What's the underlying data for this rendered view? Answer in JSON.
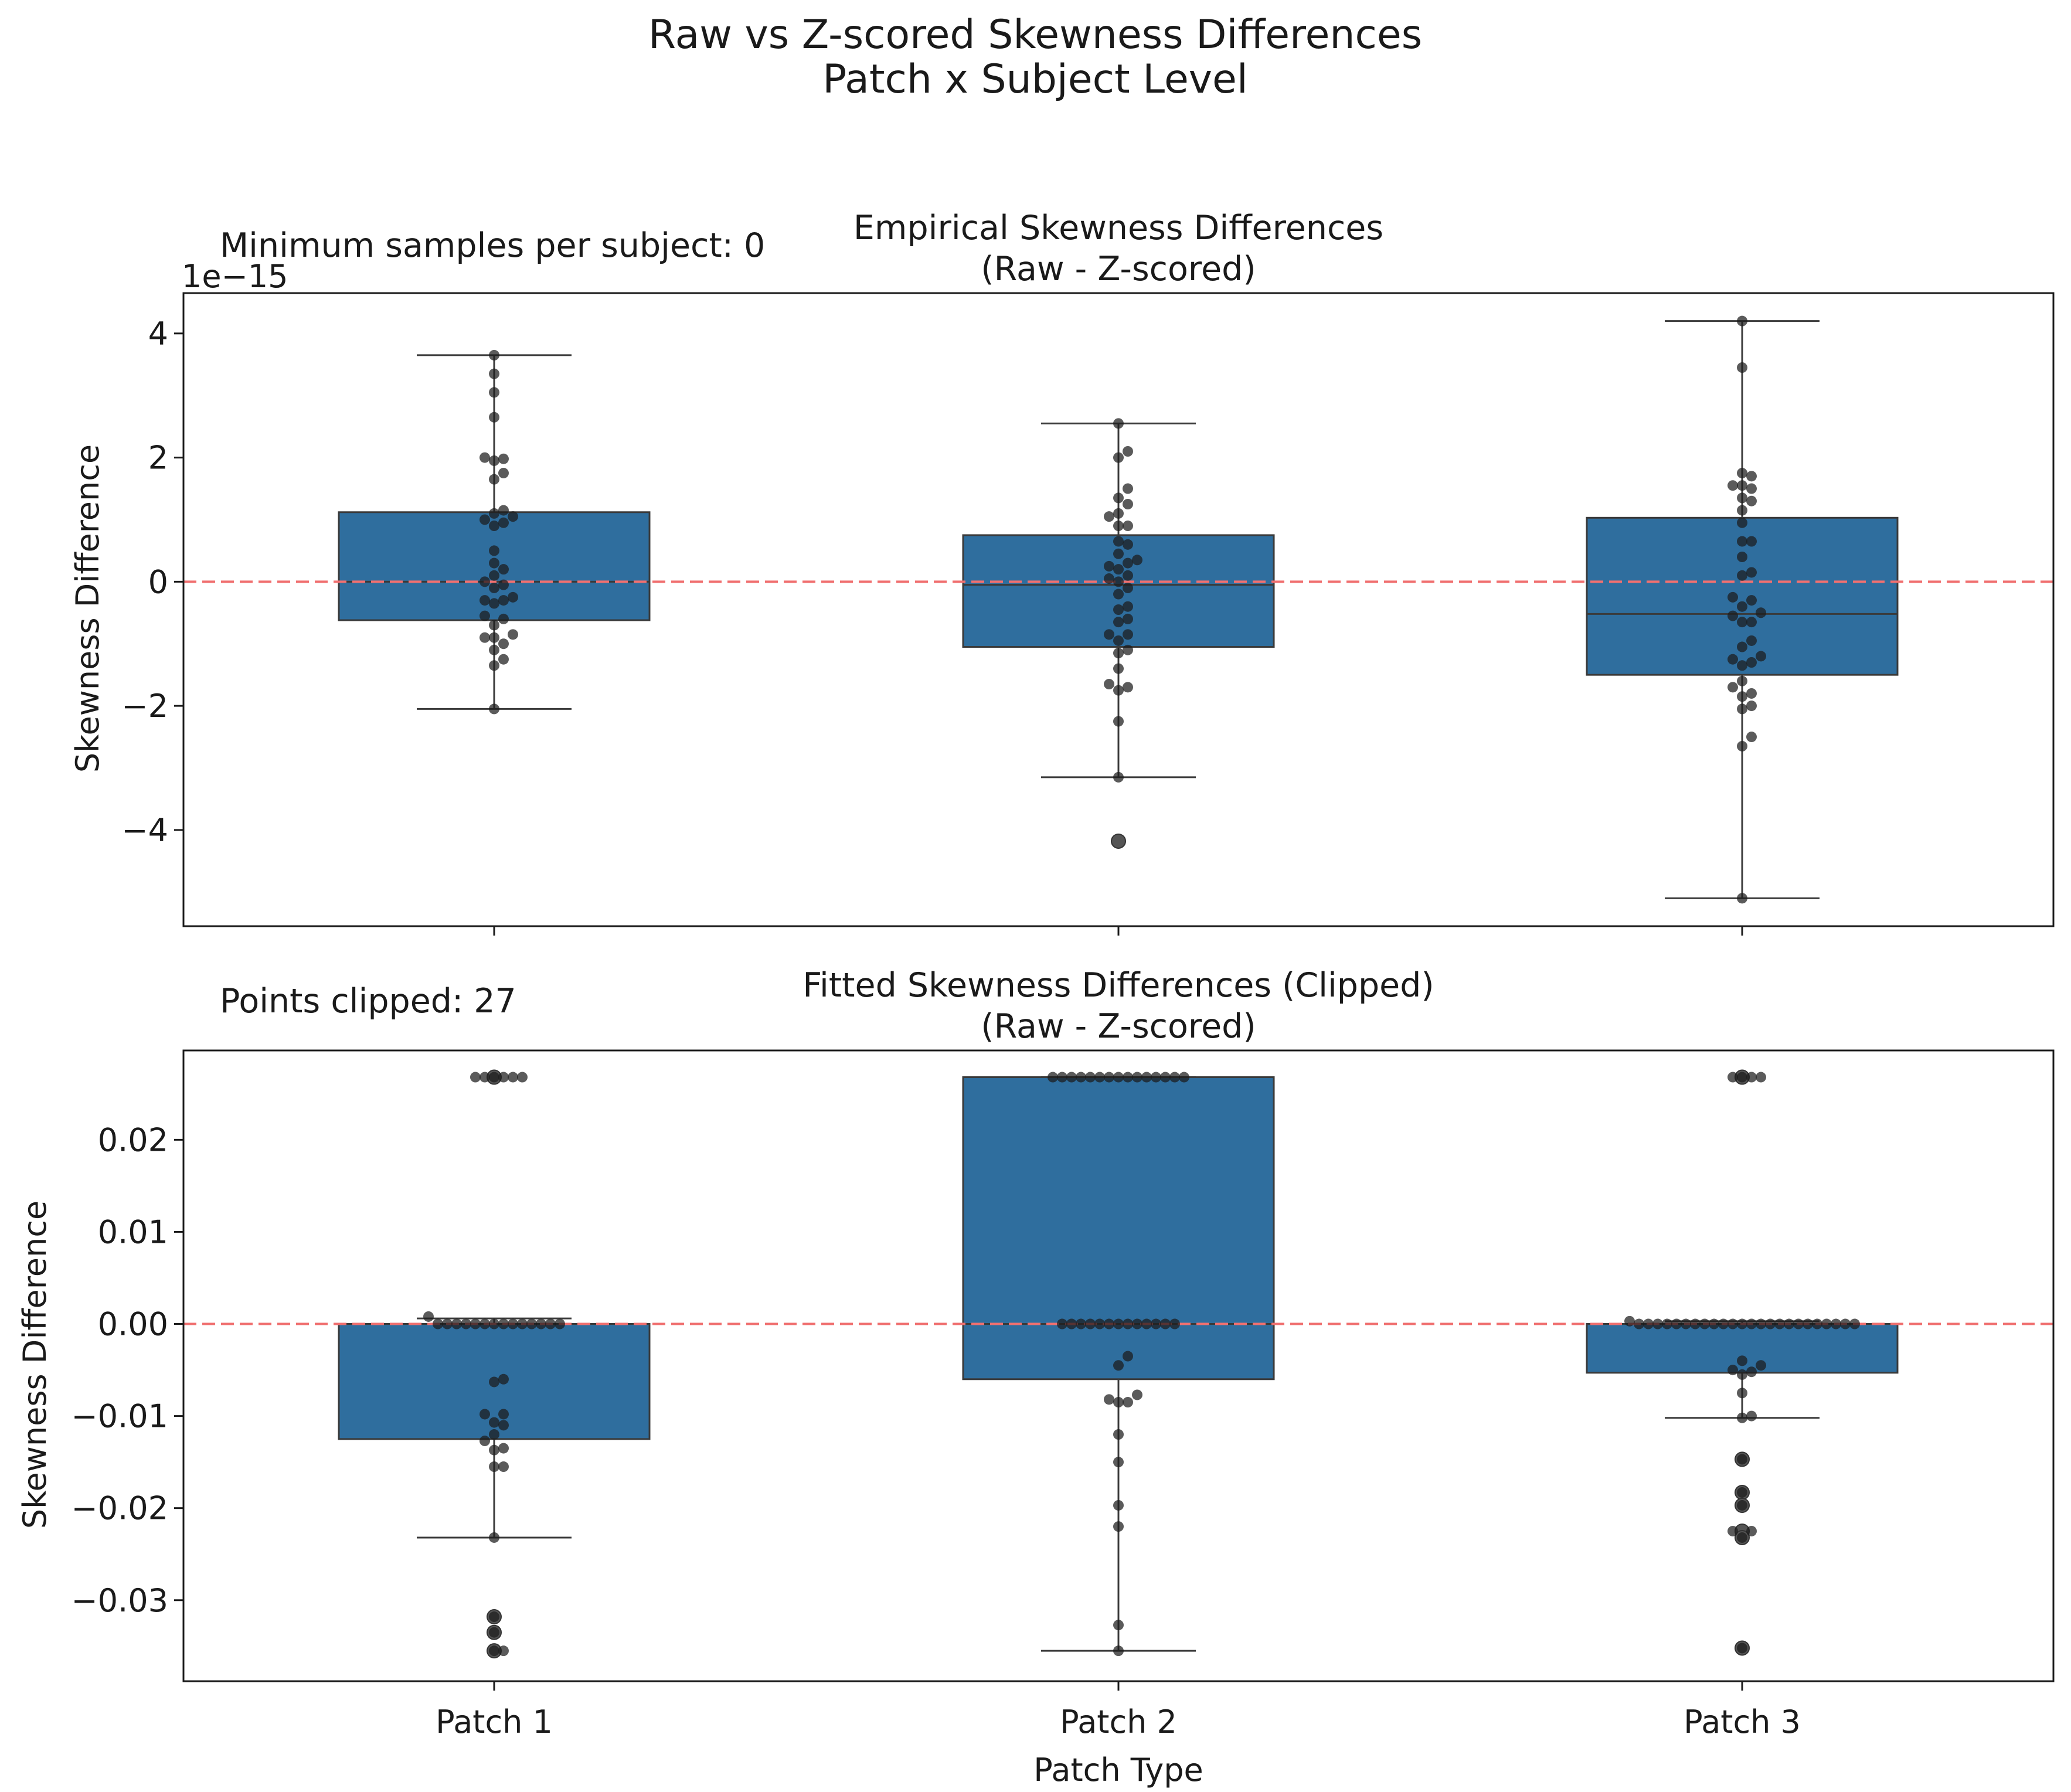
{
  "suptitle": [
    "Raw vs Z-scored Skewness Differences",
    "Patch x Subject Level"
  ],
  "xlabel": "Patch Type",
  "categories": [
    "Patch 1",
    "Patch 2",
    "Patch 3"
  ],
  "colors": {
    "box": "#2f6e9e",
    "box_edge": "#3a3a3a",
    "point": "#1c1c1c",
    "zero_line": "#f07070"
  },
  "chart_data": [
    {
      "type": "box",
      "title": [
        "Empirical Skewness Differences",
        "(Raw - Z-scored)"
      ],
      "annotation": "Minimum samples per subject: 0",
      "offset_label": "1e−15",
      "ylabel": "Skewness Difference",
      "ylim": [
        -5.55,
        4.65
      ],
      "yticks": [
        -4,
        -2,
        0,
        2,
        4
      ],
      "ytick_labels": [
        "−4",
        "−2",
        "0",
        "2",
        "4"
      ],
      "reference_line": 0,
      "boxes": [
        {
          "category": "Patch 1",
          "q1": -0.62,
          "median": 0.0,
          "q3": 1.12,
          "whisker_low": -2.05,
          "whisker_high": 3.65,
          "outliers": []
        },
        {
          "category": "Patch 2",
          "q1": -1.05,
          "median": -0.05,
          "q3": 0.75,
          "whisker_low": -3.15,
          "whisker_high": 2.55,
          "outliers": [
            -4.18
          ]
        },
        {
          "category": "Patch 3",
          "q1": -1.5,
          "median": -0.52,
          "q3": 1.03,
          "whisker_low": -5.1,
          "whisker_high": 4.2,
          "outliers": []
        }
      ],
      "points": [
        [
          3.65,
          3.35,
          3.05,
          2.65,
          2.0,
          1.95,
          1.98,
          1.75,
          1.65,
          1.15,
          1.1,
          1.05,
          1.0,
          0.95,
          0.9,
          0.5,
          0.3,
          0.2,
          0.1,
          0.0,
          -0.05,
          -0.1,
          -0.25,
          -0.3,
          -0.3,
          -0.35,
          -0.55,
          -0.6,
          -0.7,
          -0.85,
          -0.9,
          -0.9,
          -1.0,
          -1.1,
          -1.25,
          -1.35,
          -2.05
        ],
        [
          2.55,
          2.1,
          2.0,
          1.5,
          1.35,
          1.25,
          1.1,
          1.05,
          0.9,
          0.9,
          0.65,
          0.6,
          0.45,
          0.35,
          0.3,
          0.25,
          0.2,
          0.1,
          0.05,
          0.0,
          -0.1,
          -0.2,
          -0.4,
          -0.45,
          -0.6,
          -0.65,
          -0.85,
          -0.85,
          -0.95,
          -1.1,
          -1.15,
          -1.4,
          -1.65,
          -1.7,
          -1.75,
          -2.25,
          -3.15
        ],
        [
          4.2,
          3.45,
          1.75,
          1.7,
          1.55,
          1.55,
          1.5,
          1.35,
          1.3,
          1.15,
          0.95,
          0.65,
          0.65,
          0.4,
          0.15,
          0.1,
          -0.25,
          -0.3,
          -0.4,
          -0.5,
          -0.55,
          -0.65,
          -0.65,
          -0.95,
          -1.05,
          -1.2,
          -1.25,
          -1.3,
          -1.35,
          -1.6,
          -1.7,
          -1.8,
          -1.85,
          -2.0,
          -2.05,
          -2.5,
          -2.65,
          -5.1
        ]
      ]
    },
    {
      "type": "box",
      "title": [
        "Fitted Skewness Differences (Clipped)",
        "(Raw - Z-scored)"
      ],
      "annotation": "Points clipped: 27",
      "ylabel": "Skewness Difference",
      "ylim": [
        -0.0388,
        0.0297
      ],
      "yticks": [
        -0.03,
        -0.02,
        -0.01,
        0.0,
        0.01,
        0.02
      ],
      "ytick_labels": [
        "−0.03",
        "−0.02",
        "−0.01",
        "0.00",
        "0.01",
        "0.02"
      ],
      "reference_line": 0,
      "boxes": [
        {
          "category": "Patch 1",
          "q1": -0.0125,
          "median": 0.0,
          "q3": 0.0,
          "whisker_low": -0.0232,
          "whisker_high": 0.0006,
          "outliers": [
            0.0268,
            -0.0318,
            -0.0335,
            -0.0355
          ]
        },
        {
          "category": "Patch 2",
          "q1": -0.006,
          "median": 0.0,
          "q3": 0.0268,
          "whisker_low": -0.0355,
          "whisker_high": 0.0268,
          "outliers": []
        },
        {
          "category": "Patch 3",
          "q1": -0.0053,
          "median": 0.0,
          "q3": 0.0,
          "whisker_low": -0.0102,
          "whisker_high": 0.0003,
          "outliers": [
            0.0268,
            -0.0147,
            -0.0183,
            -0.0197,
            -0.0225,
            -0.0232,
            -0.0352
          ]
        }
      ],
      "points": [
        [
          0.0268,
          0.0268,
          0.0268,
          0.0268,
          0.0268,
          0.0268,
          0.0008,
          0.0,
          0.0,
          0.0,
          0.0,
          0.0,
          0.0,
          0.0,
          0.0,
          0.0,
          0.0,
          0.0,
          0.0,
          0.0,
          0.0,
          -0.006,
          -0.0063,
          -0.0098,
          -0.0098,
          -0.0107,
          -0.011,
          -0.012,
          -0.0127,
          -0.0137,
          -0.0135,
          -0.0155,
          -0.0155,
          -0.0232,
          -0.0318,
          -0.0335,
          -0.0355,
          -0.0355
        ],
        [
          0.0268,
          0.0268,
          0.0268,
          0.0268,
          0.0268,
          0.0268,
          0.0268,
          0.0268,
          0.0268,
          0.0268,
          0.0268,
          0.0268,
          0.0268,
          0.0268,
          0.0268,
          0.0,
          0.0,
          0.0,
          0.0,
          0.0,
          0.0,
          0.0,
          0.0,
          0.0,
          0.0,
          0.0,
          0.0,
          0.0,
          -0.0035,
          -0.0045,
          -0.0077,
          -0.0085,
          -0.0085,
          -0.0082,
          -0.012,
          -0.015,
          -0.0197,
          -0.022,
          -0.0327,
          -0.0355
        ],
        [
          0.0268,
          0.0268,
          0.0268,
          0.0268,
          0.0003,
          0.0,
          0.0,
          0.0,
          0.0,
          0.0,
          0.0,
          0.0,
          0.0,
          0.0,
          0.0,
          0.0,
          0.0,
          0.0,
          0.0,
          0.0,
          0.0,
          0.0,
          0.0,
          0.0,
          0.0,
          0.0,
          0.0,
          0.0,
          0.0,
          -0.004,
          -0.0045,
          -0.005,
          -0.0052,
          -0.0055,
          -0.0075,
          -0.01,
          -0.0102,
          -0.0147,
          -0.0183,
          -0.0197,
          -0.0225,
          -0.0225,
          -0.0232,
          -0.0352
        ]
      ]
    }
  ]
}
